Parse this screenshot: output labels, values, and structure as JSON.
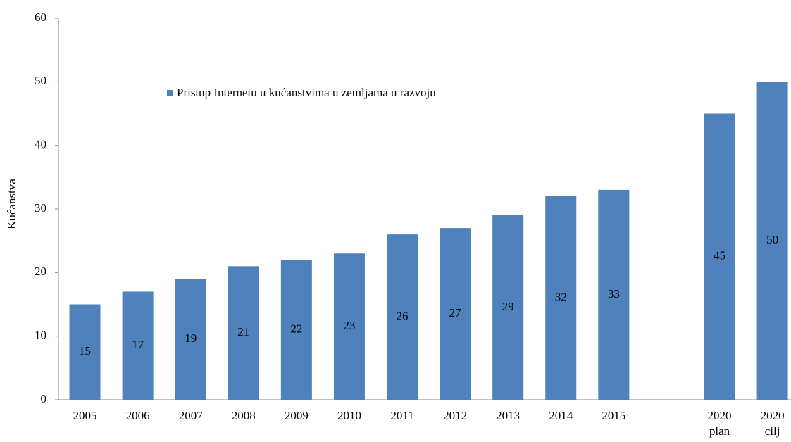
{
  "chart_data": {
    "type": "bar",
    "y_label": "Kućanstva",
    "categories": [
      "2005",
      "2006",
      "2007",
      "2008",
      "2009",
      "2010",
      "2011",
      "2012",
      "2013",
      "2014",
      "2015",
      null,
      "2020\nplan",
      "2020\ncilj"
    ],
    "series": [
      {
        "name": "Pristup Internetu u kućanstvima u zemljama u razvoju",
        "color": "#4f81bd",
        "values": [
          15,
          17,
          19,
          21,
          22,
          23,
          26,
          27,
          29,
          32,
          33,
          null,
          45,
          50
        ]
      }
    ],
    "ylim": [
      0,
      60
    ],
    "yticks": [
      0,
      10,
      20,
      30,
      40,
      50,
      60
    ],
    "grid": false,
    "legend": "top-left",
    "data_labels": true
  }
}
